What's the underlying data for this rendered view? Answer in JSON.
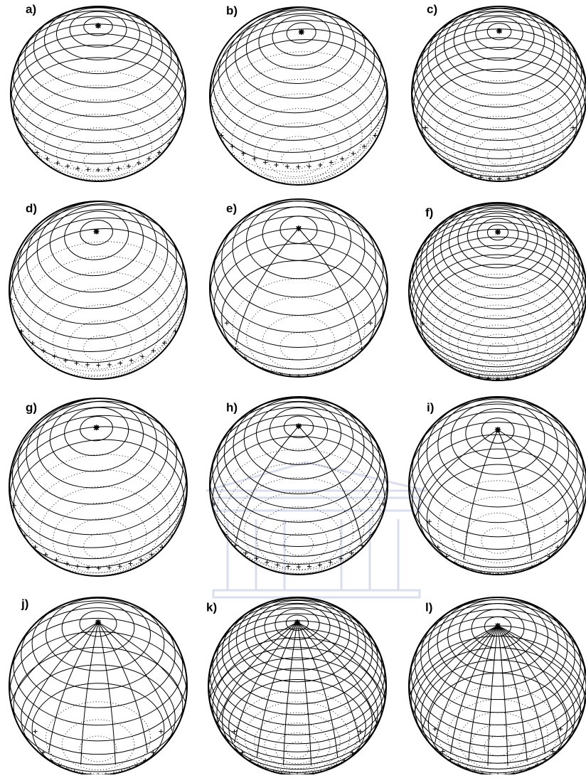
{
  "panels": [
    {
      "label": "a)"
    },
    {
      "label": "b)"
    },
    {
      "label": "c)"
    },
    {
      "label": "d)"
    },
    {
      "label": "e)"
    },
    {
      "label": "f)"
    },
    {
      "label": "g)"
    },
    {
      "label": "h)"
    },
    {
      "label": "i)"
    },
    {
      "label": "j)"
    },
    {
      "label": "k)"
    },
    {
      "label": "l)"
    }
  ]
}
